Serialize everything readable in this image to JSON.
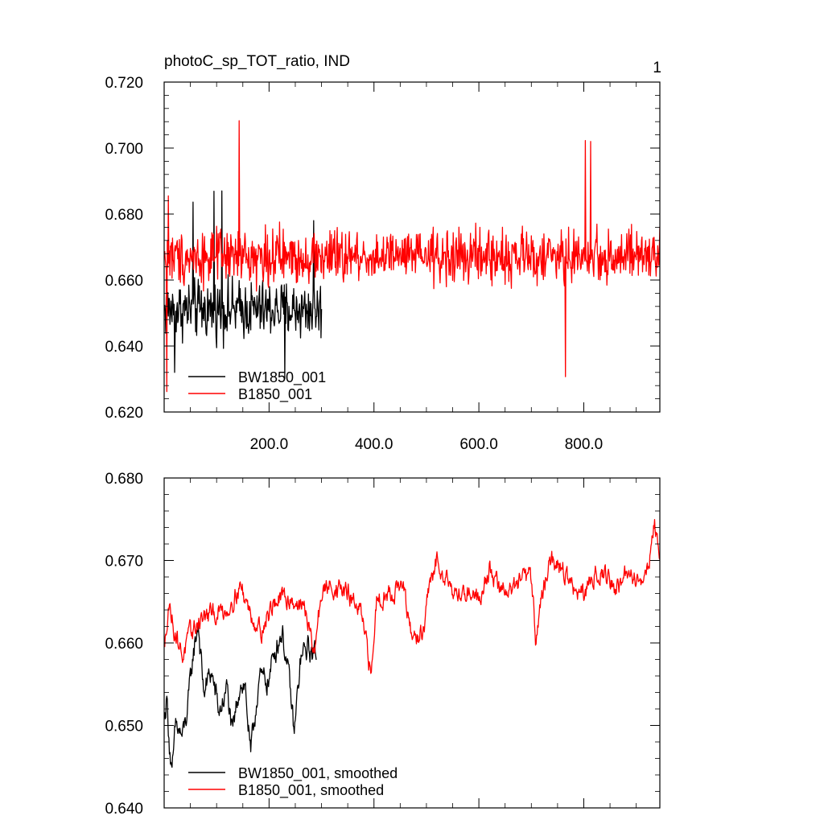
{
  "figure": {
    "title": "photoC_sp_TOT_ratio, IND",
    "panel_number": "1"
  },
  "chart_data": [
    {
      "type": "line",
      "title": "photoC_sp_TOT_ratio, IND",
      "xlabel": "",
      "ylabel": "",
      "xlim": [
        0,
        945
      ],
      "ylim": [
        0.62,
        0.72
      ],
      "yticks": [
        0.62,
        0.64,
        0.66,
        0.68,
        0.7,
        0.72
      ],
      "ytick_labels": [
        "0.620",
        "0.640",
        "0.660",
        "0.680",
        "0.700",
        "0.720"
      ],
      "xticks": [
        200,
        400,
        600,
        800
      ],
      "xtick_labels": [
        "200.0",
        "400.0",
        "600.0",
        "800.0"
      ],
      "legend_position": "bottom-left",
      "series": [
        {
          "name": "BW1850_001",
          "color": "#000000",
          "x": [
            1,
            300
          ],
          "sample_step": 1,
          "mean": 0.651,
          "amplitude": 0.013,
          "notable_points": [
            [
              55,
              0.6836
            ],
            [
              95,
              0.6869
            ],
            [
              110,
              0.687
            ],
            [
              285,
              0.678
            ],
            [
              20,
              0.632
            ],
            [
              230,
              0.63
            ]
          ]
        },
        {
          "name": "B1850_001",
          "color": "#ff0000",
          "x": [
            1,
            945
          ],
          "sample_step": 1,
          "mean": 0.667,
          "amplitude": 0.012,
          "notable_points": [
            [
              143,
              0.7083
            ],
            [
              803,
              0.7023
            ],
            [
              813,
              0.702
            ],
            [
              5,
              0.6262
            ],
            [
              765,
              0.6307
            ],
            [
              8,
              0.6855
            ]
          ]
        }
      ]
    },
    {
      "type": "line",
      "title": "",
      "xlabel": "",
      "ylabel": "",
      "xlim": [
        0,
        945
      ],
      "ylim": [
        0.64,
        0.68
      ],
      "yticks": [
        0.64,
        0.65,
        0.66,
        0.67,
        0.68
      ],
      "ytick_labels": [
        "0.640",
        "0.650",
        "0.660",
        "0.670",
        "0.680"
      ],
      "xticks": [
        200,
        400,
        600,
        800
      ],
      "xtick_labels": [],
      "legend_position": "bottom-left",
      "series": [
        {
          "name": "BW1850_001, smoothed",
          "color": "#000000",
          "x": [
            1,
            290
          ],
          "keypoints": [
            [
              1,
              0.651
            ],
            [
              5,
              0.6535
            ],
            [
              10,
              0.648
            ],
            [
              15,
              0.6435
            ],
            [
              22,
              0.65
            ],
            [
              35,
              0.6485
            ],
            [
              45,
              0.652
            ],
            [
              55,
              0.6585
            ],
            [
              65,
              0.6625
            ],
            [
              75,
              0.654
            ],
            [
              90,
              0.6565
            ],
            [
              105,
              0.6515
            ],
            [
              120,
              0.6545
            ],
            [
              130,
              0.6485
            ],
            [
              145,
              0.6555
            ],
            [
              155,
              0.6545
            ],
            [
              165,
              0.646
            ],
            [
              180,
              0.6555
            ],
            [
              200,
              0.6555
            ],
            [
              210,
              0.659
            ],
            [
              225,
              0.6615
            ],
            [
              240,
              0.6545
            ],
            [
              248,
              0.6488
            ],
            [
              260,
              0.658
            ],
            [
              275,
              0.6595
            ],
            [
              285,
              0.6585
            ],
            [
              290,
              0.659
            ]
          ],
          "noise": 0.0015
        },
        {
          "name": "B1850_001, smoothed",
          "color": "#ff0000",
          "x": [
            1,
            945
          ],
          "keypoints": [
            [
              1,
              0.659
            ],
            [
              8,
              0.665
            ],
            [
              20,
              0.6615
            ],
            [
              35,
              0.6585
            ],
            [
              50,
              0.661
            ],
            [
              70,
              0.663
            ],
            [
              95,
              0.6635
            ],
            [
              120,
              0.664
            ],
            [
              145,
              0.667
            ],
            [
              165,
              0.6635
            ],
            [
              185,
              0.6615
            ],
            [
              210,
              0.665
            ],
            [
              240,
              0.6655
            ],
            [
              270,
              0.664
            ],
            [
              285,
              0.6585
            ],
            [
              300,
              0.666
            ],
            [
              320,
              0.667
            ],
            [
              350,
              0.666
            ],
            [
              375,
              0.6635
            ],
            [
              395,
              0.656
            ],
            [
              405,
              0.6655
            ],
            [
              430,
              0.666
            ],
            [
              455,
              0.667
            ],
            [
              470,
              0.661
            ],
            [
              480,
              0.6605
            ],
            [
              495,
              0.6615
            ],
            [
              505,
              0.6665
            ],
            [
              520,
              0.67
            ],
            [
              540,
              0.668
            ],
            [
              560,
              0.6655
            ],
            [
              580,
              0.6665
            ],
            [
              600,
              0.6655
            ],
            [
              620,
              0.669
            ],
            [
              640,
              0.6665
            ],
            [
              660,
              0.6665
            ],
            [
              680,
              0.6675
            ],
            [
              700,
              0.668
            ],
            [
              708,
              0.661
            ],
            [
              715,
              0.664
            ],
            [
              735,
              0.67
            ],
            [
              760,
              0.669
            ],
            [
              780,
              0.6665
            ],
            [
              800,
              0.6655
            ],
            [
              820,
              0.6685
            ],
            [
              840,
              0.6685
            ],
            [
              860,
              0.6665
            ],
            [
              880,
              0.668
            ],
            [
              900,
              0.668
            ],
            [
              915,
              0.6675
            ],
            [
              925,
              0.6705
            ],
            [
              935,
              0.6745
            ],
            [
              945,
              0.6705
            ]
          ],
          "noise": 0.0012
        }
      ]
    }
  ]
}
